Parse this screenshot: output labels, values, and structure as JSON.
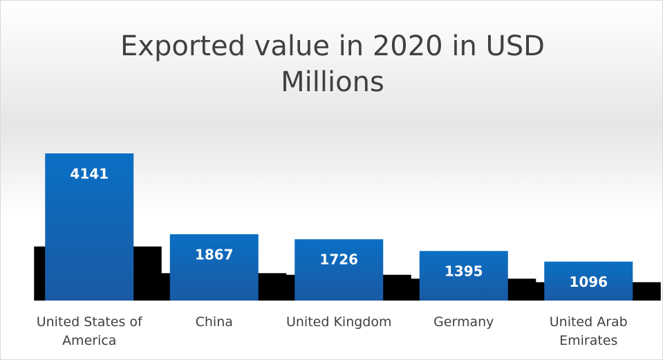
{
  "chart_data": {
    "type": "bar",
    "title": "Exported value in 2020 in USD Millions",
    "categories": [
      "United States of America",
      "China",
      "United Kingdom",
      "Germany",
      "United Arab Emirates"
    ],
    "values": [
      4141,
      1867,
      1726,
      1395,
      1096
    ],
    "color": "#0b6cc0"
  }
}
